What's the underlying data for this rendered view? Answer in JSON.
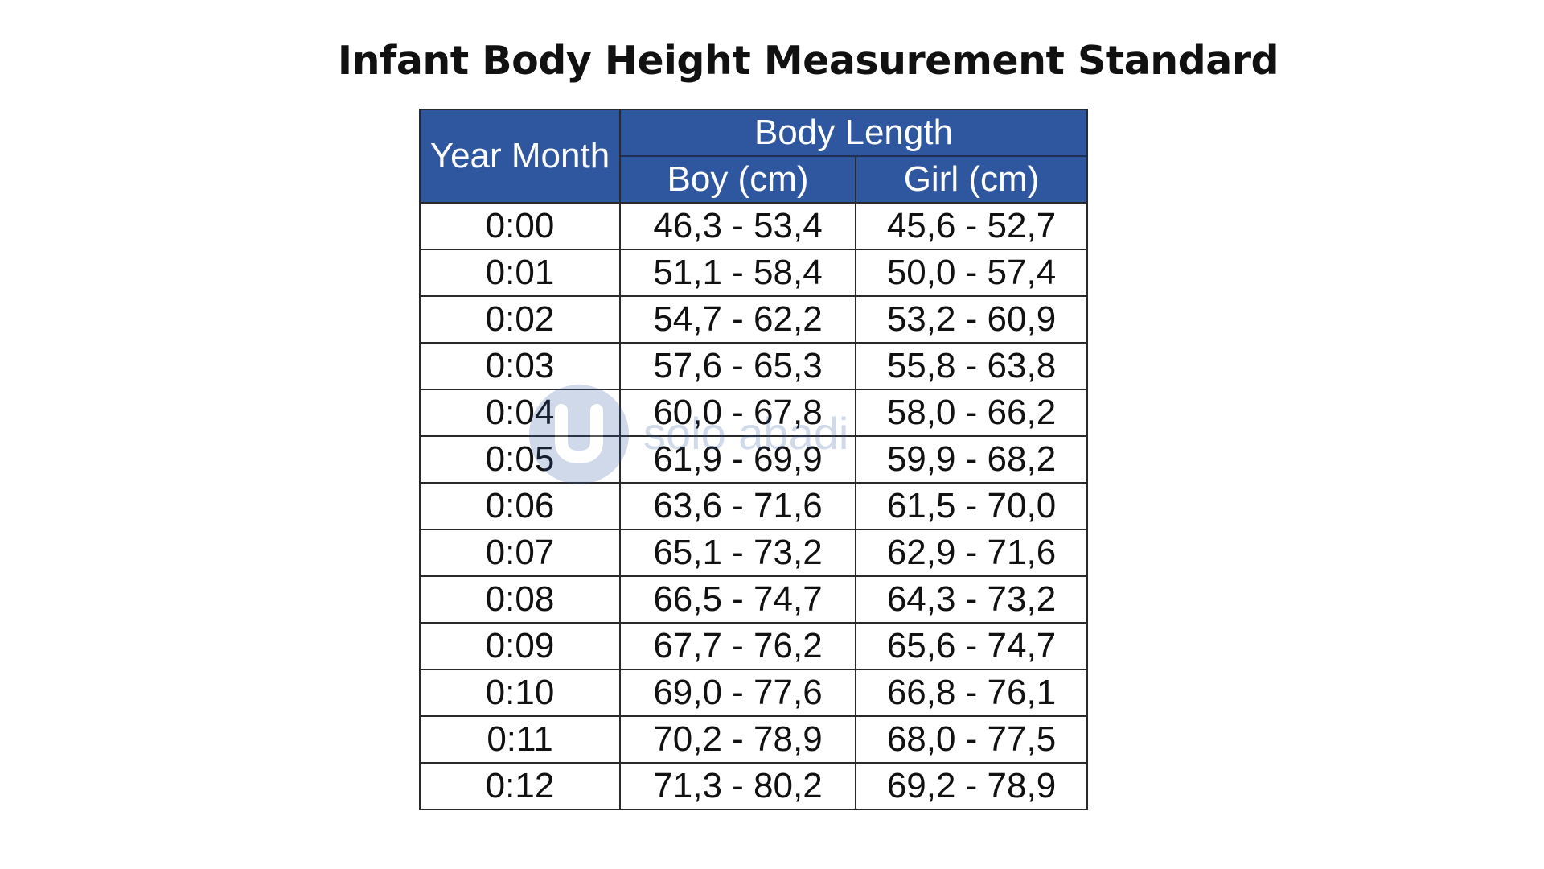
{
  "title": "Infant Body Height Measurement Standard",
  "table": {
    "header": {
      "col1": "Year Month",
      "group": "Body Length",
      "boy": "Boy (cm)",
      "girl": "Girl (cm)"
    },
    "rows": [
      {
        "age": "0:00",
        "boy": "46,3 - 53,4",
        "girl": "45,6 - 52,7"
      },
      {
        "age": "0:01",
        "boy": "51,1 - 58,4",
        "girl": "50,0 - 57,4"
      },
      {
        "age": "0:02",
        "boy": "54,7 - 62,2",
        "girl": "53,2 - 60,9"
      },
      {
        "age": "0:03",
        "boy": "57,6 - 65,3",
        "girl": "55,8 - 63,8"
      },
      {
        "age": "0:04",
        "boy": "60,0 - 67,8",
        "girl": "58,0 - 66,2"
      },
      {
        "age": "0:05",
        "boy": "61,9 - 69,9",
        "girl": "59,9 - 68,2"
      },
      {
        "age": "0:06",
        "boy": "63,6 - 71,6",
        "girl": "61,5 - 70,0"
      },
      {
        "age": "0:07",
        "boy": "65,1 - 73,2",
        "girl": "62,9 - 71,6"
      },
      {
        "age": "0:08",
        "boy": "66,5 - 74,7",
        "girl": "64,3 - 73,2"
      },
      {
        "age": "0:09",
        "boy": "67,7 - 76,2",
        "girl": "65,6 - 74,7"
      },
      {
        "age": "0:10",
        "boy": "69,0 - 77,6",
        "girl": "66,8 - 76,1"
      },
      {
        "age": "0:11",
        "boy": "70,2 - 78,9",
        "girl": "68,0 - 77,5"
      },
      {
        "age": "0:12",
        "boy": "71,3 - 80,2",
        "girl": "69,2 - 78,9"
      }
    ]
  },
  "watermark": {
    "text": "solo abadi",
    "icon": "logo-icon"
  },
  "colors": {
    "header_bg": "#2f57a0",
    "header_text": "#ffffff",
    "watermark": "#2f57a0"
  }
}
